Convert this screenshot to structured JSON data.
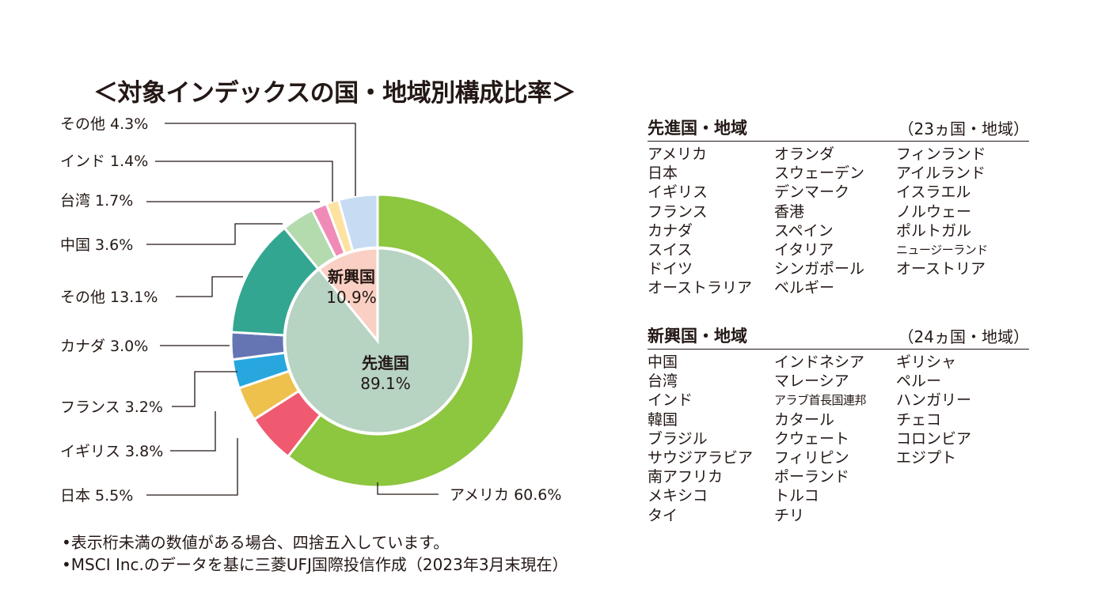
{
  "title": "＜対象インデックスの国・地域別構成比率＞",
  "chart_data": {
    "type": "pie",
    "variant": "nested-donut",
    "outer_ring": [
      {
        "label": "アメリカ",
        "value": 60.6,
        "value_text": "60.6%",
        "color": "#8dc63f"
      },
      {
        "label": "日本",
        "value": 5.5,
        "value_text": "5.5%",
        "color": "#ef5a70"
      },
      {
        "label": "イギリス",
        "value": 3.8,
        "value_text": "3.8%",
        "color": "#eec04c"
      },
      {
        "label": "フランス",
        "value": 3.2,
        "value_text": "3.2%",
        "color": "#27a7de"
      },
      {
        "label": "カナダ",
        "value": 3.0,
        "value_text": "3.0%",
        "color": "#6575b3"
      },
      {
        "label": "その他",
        "value": 13.1,
        "value_text": "13.1%",
        "color": "#33a691"
      },
      {
        "label": "中国",
        "value": 3.6,
        "value_text": "3.6%",
        "color": "#b3dbae"
      },
      {
        "label": "台湾",
        "value": 1.7,
        "value_text": "1.7%",
        "color": "#f08bb8"
      },
      {
        "label": "インド",
        "value": 1.4,
        "value_text": "1.4%",
        "color": "#fde2a1"
      },
      {
        "label": "その他",
        "value": 4.3,
        "value_text": "4.3%",
        "color": "#c7dcf2"
      }
    ],
    "inner_ring": [
      {
        "label": "先進国",
        "value": 89.1,
        "value_text": "89.1%",
        "color": "#b7d3c2"
      },
      {
        "label": "新興国",
        "value": 10.9,
        "value_text": "10.9%",
        "color": "#f9d0c3"
      }
    ]
  },
  "developed": {
    "title": "先進国・地域",
    "count": "（23ヵ国・地域）",
    "columns": [
      [
        "アメリカ",
        "日本",
        "イギリス",
        "フランス",
        "カナダ",
        "スイス",
        "ドイツ",
        "オーストラリア"
      ],
      [
        "オランダ",
        "スウェーデン",
        "デンマーク",
        "香港",
        "スペイン",
        "イタリア",
        "シンガポール",
        "ベルギー"
      ],
      [
        "フィンランド",
        "アイルランド",
        "イスラエル",
        "ノルウェー",
        "ポルトガル",
        "ニュージーランド",
        "オーストリア"
      ]
    ]
  },
  "emerging": {
    "title": "新興国・地域",
    "count": "（24ヵ国・地域）",
    "columns": [
      [
        "中国",
        "台湾",
        "インド",
        "韓国",
        "ブラジル",
        "サウジアラビア",
        "南アフリカ",
        "メキシコ",
        "タイ"
      ],
      [
        "インドネシア",
        "マレーシア",
        "アラブ首長国連邦",
        "カタール",
        "クウェート",
        "フィリピン",
        "ポーランド",
        "トルコ",
        "チリ"
      ],
      [
        "ギリシャ",
        "ペルー",
        "ハンガリー",
        "チェコ",
        "コロンビア",
        "エジプト"
      ]
    ]
  },
  "notes": [
    "•表示桁未満の数値がある場合、四捨五入しています。",
    "•MSCI Inc.のデータを基に三菱UFJ国際投信作成（2023年3月末現在）"
  ]
}
